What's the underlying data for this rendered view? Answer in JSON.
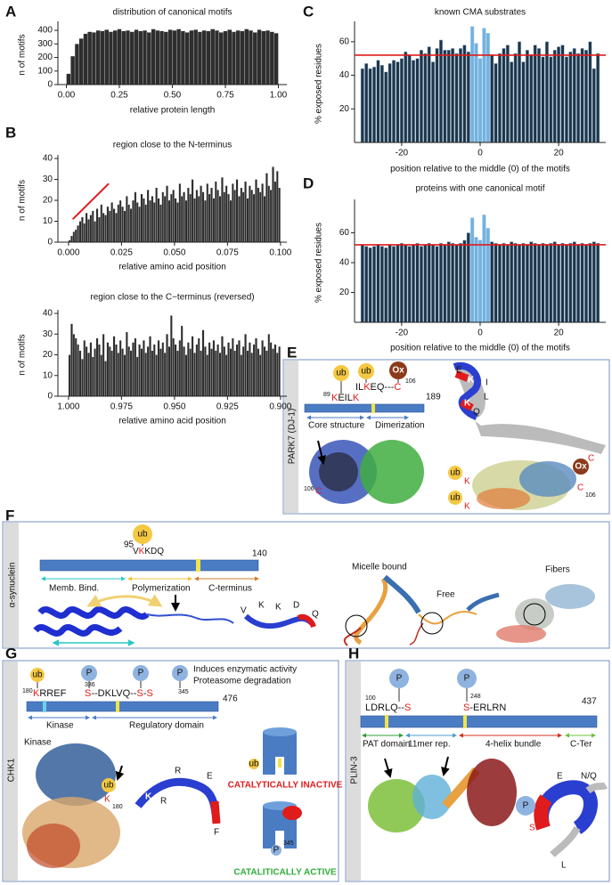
{
  "chart_data": [
    {
      "type": "histogram",
      "label": "A",
      "title": "distribution of canonical motifs",
      "xlabel": "relative protein length",
      "ylabel": "n of motifs",
      "color": "#2e2e2e",
      "bins": [
        0,
        0.02,
        0.04,
        0.06,
        0.08,
        0.1,
        0.12,
        0.14,
        0.16,
        0.18,
        0.2,
        0.22,
        0.24,
        0.26,
        0.28,
        0.3,
        0.32,
        0.34,
        0.36,
        0.38,
        0.4,
        0.42,
        0.44,
        0.46,
        0.48,
        0.5,
        0.52,
        0.54,
        0.56,
        0.58,
        0.6,
        0.62,
        0.64,
        0.66,
        0.68,
        0.7,
        0.72,
        0.74,
        0.76,
        0.78,
        0.8,
        0.82,
        0.84,
        0.86,
        0.88,
        0.9,
        0.92,
        0.94,
        0.96,
        0.98,
        1
      ],
      "values": [
        80,
        210,
        300,
        340,
        375,
        390,
        385,
        400,
        395,
        405,
        390,
        400,
        410,
        395,
        400,
        390,
        405,
        395,
        400,
        385,
        410,
        400,
        395,
        390,
        405,
        400,
        410,
        395,
        385,
        400,
        405,
        390,
        400,
        395,
        410,
        400,
        385,
        395,
        405,
        390,
        400,
        395,
        410,
        400,
        385,
        405,
        395,
        400,
        390,
        380
      ],
      "xlim": [
        -0.04,
        1.04
      ],
      "xticks": [
        {
          "value": 0,
          "label": "0.00"
        },
        {
          "value": 0.25,
          "label": "0.25"
        },
        {
          "value": 0.5,
          "label": "0.50"
        },
        {
          "value": 0.75,
          "label": "0.75"
        },
        {
          "value": 1,
          "label": "1.00"
        }
      ],
      "ylim": [
        0,
        440
      ],
      "yticks": [
        0,
        100,
        200,
        300,
        400
      ]
    },
    {
      "type": "histogram",
      "label": "B",
      "title": "region close to the N-terminus",
      "xlabel": "relative amino acid position",
      "ylabel": "n of motifs",
      "color": "#2e2e2e",
      "bins": [
        0,
        0.001,
        0.002,
        0.003,
        0.004,
        0.005,
        0.006,
        0.007,
        0.008,
        0.009,
        0.01,
        0.011,
        0.012,
        0.013,
        0.014,
        0.015,
        0.016,
        0.017,
        0.018,
        0.019,
        0.02,
        0.021,
        0.022,
        0.023,
        0.024,
        0.025,
        0.026,
        0.027,
        0.028,
        0.029,
        0.03,
        0.031,
        0.032,
        0.033,
        0.034,
        0.035,
        0.036,
        0.037,
        0.038,
        0.039,
        0.04,
        0.041,
        0.042,
        0.043,
        0.044,
        0.045,
        0.046,
        0.047,
        0.048,
        0.049,
        0.05,
        0.051,
        0.052,
        0.053,
        0.054,
        0.055,
        0.056,
        0.057,
        0.058,
        0.059,
        0.06,
        0.061,
        0.062,
        0.063,
        0.064,
        0.065,
        0.066,
        0.067,
        0.068,
        0.069,
        0.07,
        0.071,
        0.072,
        0.073,
        0.074,
        0.075,
        0.076,
        0.077,
        0.078,
        0.079,
        0.08,
        0.081,
        0.082,
        0.083,
        0.084,
        0.085,
        0.086,
        0.087,
        0.088,
        0.089,
        0.09,
        0.091,
        0.092,
        0.093,
        0.094,
        0.095,
        0.096,
        0.097,
        0.098,
        0.099,
        0.1
      ],
      "values": [
        1,
        3,
        5,
        6,
        8,
        10,
        12,
        9,
        14,
        11,
        13,
        15,
        10,
        16,
        12,
        18,
        14,
        13,
        17,
        15,
        19,
        16,
        14,
        18,
        20,
        17,
        15,
        22,
        18,
        16,
        20,
        24,
        19,
        17,
        23,
        21,
        18,
        25,
        20,
        22,
        19,
        26,
        21,
        18,
        24,
        22,
        27,
        20,
        23,
        25,
        21,
        19,
        28,
        22,
        24,
        20,
        26,
        23,
        30,
        21,
        25,
        22,
        27,
        24,
        20,
        28,
        23,
        26,
        21,
        29,
        25,
        22,
        31,
        24,
        27,
        23,
        20,
        28,
        25,
        30,
        22,
        26,
        24,
        29,
        21,
        27,
        25,
        23,
        30,
        26,
        24,
        28,
        22,
        33,
        27,
        25,
        36,
        29,
        34,
        26
      ],
      "xlim": [
        -0.005,
        0.103
      ],
      "xticks": [
        {
          "value": 0,
          "label": "0.000"
        },
        {
          "value": 0.025,
          "label": "0.025"
        },
        {
          "value": 0.05,
          "label": "0.050"
        },
        {
          "value": 0.075,
          "label": "0.075"
        },
        {
          "value": 0.1,
          "label": "0.100"
        }
      ],
      "ylim": [
        0,
        40
      ],
      "yticks": [
        0,
        10,
        20,
        30,
        40
      ],
      "trend_line": {
        "x": [
          0.002,
          0.019
        ],
        "y": [
          11,
          28
        ],
        "color": "#e01b1b"
      }
    },
    {
      "type": "histogram",
      "title": "region close to the C−terminus (reversed)",
      "xlabel": "relative amino acid position",
      "ylabel": "n of motifs",
      "color": "#2e2e2e",
      "bins": [
        1,
        0.999,
        0.998,
        0.997,
        0.996,
        0.995,
        0.994,
        0.993,
        0.992,
        0.991,
        0.99,
        0.989,
        0.988,
        0.987,
        0.986,
        0.985,
        0.984,
        0.983,
        0.982,
        0.981,
        0.98,
        0.979,
        0.978,
        0.977,
        0.976,
        0.975,
        0.974,
        0.973,
        0.972,
        0.971,
        0.97,
        0.969,
        0.968,
        0.967,
        0.966,
        0.965,
        0.964,
        0.963,
        0.962,
        0.961,
        0.96,
        0.959,
        0.958,
        0.957,
        0.956,
        0.955,
        0.954,
        0.953,
        0.952,
        0.951,
        0.95,
        0.949,
        0.948,
        0.947,
        0.946,
        0.945,
        0.944,
        0.943,
        0.942,
        0.941,
        0.94,
        0.939,
        0.938,
        0.937,
        0.936,
        0.935,
        0.934,
        0.933,
        0.932,
        0.931,
        0.93,
        0.929,
        0.928,
        0.927,
        0.926,
        0.925,
        0.924,
        0.923,
        0.922,
        0.921,
        0.92,
        0.919,
        0.918,
        0.917,
        0.916,
        0.915,
        0.914,
        0.913,
        0.912,
        0.911,
        0.91,
        0.909,
        0.908,
        0.907,
        0.906,
        0.905,
        0.904,
        0.903,
        0.902,
        0.901,
        0.9
      ],
      "values": [
        20,
        35,
        30,
        28,
        25,
        22,
        18,
        27,
        24,
        21,
        26,
        19,
        23,
        28,
        25,
        20,
        30,
        17,
        26,
        24,
        22,
        29,
        25,
        21,
        27,
        23,
        20,
        31,
        24,
        22,
        26,
        28,
        19,
        25,
        23,
        27,
        21,
        24,
        29,
        22,
        25,
        20,
        27,
        23,
        26,
        21,
        30,
        24,
        39,
        28,
        25,
        22,
        27,
        34,
        24,
        20,
        26,
        23,
        29,
        21,
        25,
        28,
        22,
        32,
        24,
        20,
        26,
        23,
        27,
        22,
        25,
        21,
        29,
        24,
        20,
        26,
        23,
        28,
        22,
        25,
        27,
        20,
        24,
        30,
        22,
        26,
        21,
        25,
        28,
        23,
        20,
        27,
        24,
        22,
        30,
        26,
        23,
        25,
        21,
        24
      ],
      "xlim": [
        1.005,
        0.897
      ],
      "xticks": [
        {
          "value": 1,
          "label": "1.000"
        },
        {
          "value": 0.975,
          "label": "0.975"
        },
        {
          "value": 0.95,
          "label": "0.950"
        },
        {
          "value": 0.925,
          "label": "0.925"
        },
        {
          "value": 0.9,
          "label": "0.900"
        }
      ],
      "ylim": [
        0,
        40
      ],
      "yticks": [
        0,
        10,
        20,
        30,
        40
      ]
    },
    {
      "type": "bar",
      "label": "C",
      "title": "known CMA substrates",
      "xlabel": "position relative to the middle (0) of the motifs",
      "ylabel": "% exposed residues",
      "color": "#1e3549",
      "edgecolor": "#9bb8d0",
      "highlight": {
        "range": [
          -2.5,
          2.5
        ],
        "color": "#6db3e6"
      },
      "x": [
        -30,
        -29,
        -28,
        -27,
        -26,
        -25,
        -24,
        -23,
        -22,
        -21,
        -20,
        -19,
        -18,
        -17,
        -16,
        -15,
        -14,
        -13,
        -12,
        -11,
        -10,
        -9,
        -8,
        -7,
        -6,
        -5,
        -4,
        -3,
        -2,
        -1,
        0,
        1,
        2,
        3,
        4,
        5,
        6,
        7,
        8,
        9,
        10,
        11,
        12,
        13,
        14,
        15,
        16,
        17,
        18,
        19,
        20,
        21,
        22,
        23,
        24,
        25,
        26,
        27,
        28,
        29,
        30
      ],
      "values": [
        44,
        47,
        44,
        45,
        49,
        46,
        42,
        47,
        49,
        48,
        50,
        54,
        52,
        49,
        50,
        55,
        53,
        57,
        48,
        56,
        61,
        55,
        55,
        56,
        53,
        56,
        58,
        54,
        69,
        59,
        50,
        68,
        65,
        52,
        47,
        53,
        56,
        58,
        48,
        53,
        60,
        48,
        55,
        52,
        58,
        56,
        51,
        60,
        51,
        55,
        57,
        58,
        51,
        54,
        56,
        53,
        56,
        55,
        60,
        44,
        53
      ],
      "xlim": [
        -32,
        32
      ],
      "xticks": [
        -20,
        0,
        20
      ],
      "ylim": [
        0,
        70
      ],
      "yticks": [
        20,
        40,
        60
      ],
      "reference_line": {
        "y": 52,
        "color": "#e01b1b"
      }
    },
    {
      "type": "bar",
      "label": "D",
      "title": "proteins with one canonical motif",
      "xlabel": "position relative to the middle (0) of the motifs",
      "ylabel": "% exposed residues",
      "color": "#1e3549",
      "edgecolor": "#9bb8d0",
      "highlight": {
        "range": [
          -2.5,
          2.5
        ],
        "color": "#6db3e6"
      },
      "x": [
        -30,
        -29,
        -28,
        -27,
        -26,
        -25,
        -24,
        -23,
        -22,
        -21,
        -20,
        -19,
        -18,
        -17,
        -16,
        -15,
        -14,
        -13,
        -12,
        -11,
        -10,
        -9,
        -8,
        -7,
        -6,
        -5,
        -4,
        -3,
        -2,
        -1,
        0,
        1,
        2,
        3,
        4,
        5,
        6,
        7,
        8,
        9,
        10,
        11,
        12,
        13,
        14,
        15,
        16,
        17,
        18,
        19,
        20,
        21,
        22,
        23,
        24,
        25,
        26,
        27,
        28,
        29,
        30
      ],
      "values": [
        52,
        51,
        50,
        51,
        52,
        51,
        50,
        52,
        51,
        52,
        53,
        52,
        51,
        52,
        53,
        51,
        52,
        53,
        52,
        51,
        53,
        52,
        54,
        53,
        52,
        53,
        55,
        60,
        70,
        57,
        55,
        72,
        63,
        54,
        53,
        52,
        53,
        52,
        54,
        53,
        52,
        53,
        52,
        54,
        53,
        52,
        53,
        52,
        53,
        54,
        52,
        53,
        52,
        53,
        54,
        52,
        53,
        52,
        53,
        54,
        53
      ],
      "xlim": [
        -32,
        32
      ],
      "xticks": [
        -20,
        0,
        20
      ],
      "ylim": [
        0,
        80
      ],
      "yticks": [
        20,
        40,
        60
      ],
      "reference_line": {
        "y": 52,
        "color": "#e01b1b"
      }
    }
  ],
  "panel_E": {
    "label": "E",
    "protein": "PARK7 (DJ-1)",
    "tags": [
      "ub",
      "ub",
      "Ox"
    ],
    "pos_89": "89",
    "seq1": [
      "K",
      "EIL",
      "K"
    ],
    "seq2": [
      "IL",
      "K",
      "EQ---",
      "C"
    ],
    "pos_106": "106",
    "length": "189",
    "domains": [
      "Core structure",
      "Dimerization"
    ],
    "structure_labels": [
      "106",
      "C"
    ],
    "helix_letters": [
      "E",
      "K",
      "I",
      "L",
      "K",
      "Q",
      "C"
    ],
    "surface_labels": [
      "ub",
      "K",
      "ub",
      "K",
      "Ox",
      "C",
      "106"
    ]
  },
  "panel_F": {
    "label": "F",
    "protein": "α-synuclein",
    "tag": "ub",
    "pos": "95",
    "seq": [
      "V",
      "K",
      "KDQ"
    ],
    "length": "140",
    "domains": [
      "Memb. Bind.",
      "Polymerization",
      "C-terminus"
    ],
    "ribbon_letters": [
      "V",
      "K",
      "K",
      "D",
      "Q"
    ],
    "states": [
      "Micelle bound",
      "Free",
      "Fibers"
    ]
  },
  "panel_G": {
    "label": "G",
    "protein": "CHK1",
    "tags": [
      "ub",
      "P",
      "P",
      "P"
    ],
    "effects": [
      "Induces enzymatic activity",
      "Proteasome degradation"
    ],
    "pos_180": "180",
    "seq1": [
      "K",
      "RREF"
    ],
    "pos_336": "336",
    "seq2": [
      "S",
      "--DKLVQ--",
      "S",
      "-",
      "S"
    ],
    "pos_345": "345",
    "length": "476",
    "domains": [
      "Kinase",
      "Regulatory domain"
    ],
    "structure_label": "Kinase",
    "site_labels": [
      "ub",
      "K",
      "180"
    ],
    "ribbon_letters": [
      "K",
      "R",
      "R",
      "E",
      "F"
    ],
    "states": [
      "CATALYTICALLY INACTIVE",
      "CATALITICALLY ACTIVE"
    ],
    "model_labels": [
      "ub",
      "P",
      "345"
    ]
  },
  "panel_H": {
    "label": "H",
    "protein": "PLIN-3",
    "tags": [
      "P",
      "P"
    ],
    "pos_100": "100",
    "seq1": [
      "LDRLQ--",
      "S"
    ],
    "pos_248": "248",
    "seq2": [
      "S",
      "-ERLRN"
    ],
    "length": "437",
    "domains": [
      "PAT domain",
      "11mer rep.",
      "4-helix bundle",
      "C-Ter"
    ],
    "ribbon_labels": [
      "P",
      "S",
      "E",
      "R",
      "R",
      "L",
      "N/Q"
    ]
  }
}
